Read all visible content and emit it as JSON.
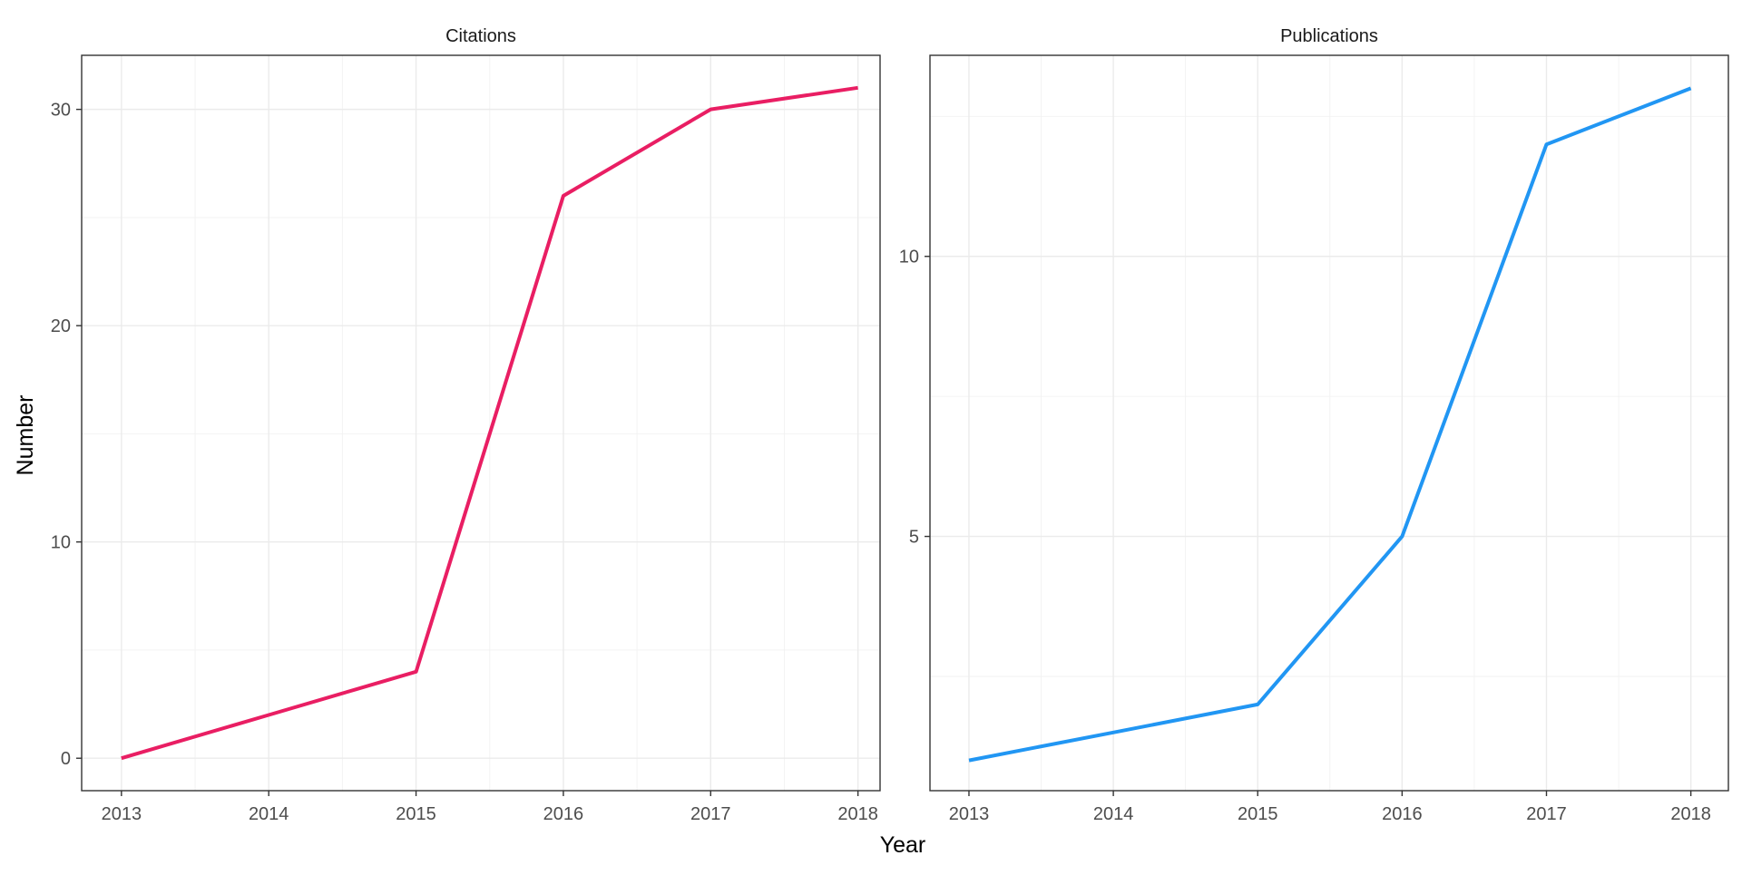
{
  "chart_data": [
    {
      "type": "line",
      "title": "Citations",
      "x": [
        2013,
        2014,
        2015,
        2016,
        2017,
        2018
      ],
      "series": [
        {
          "values": [
            0,
            2,
            4,
            26,
            30,
            31
          ],
          "color": "#e91e63"
        }
      ],
      "xlim": [
        2012.73,
        2018.15
      ],
      "ylim": [
        -1.5,
        32.5
      ],
      "x_ticks": [
        2013,
        2014,
        2015,
        2016,
        2017,
        2018
      ],
      "y_ticks": [
        0,
        10,
        20,
        30
      ],
      "grid": true
    },
    {
      "type": "line",
      "title": "Publications",
      "x": [
        2013,
        2014,
        2015,
        2016,
        2017,
        2018
      ],
      "series": [
        {
          "values": [
            1,
            1.5,
            2,
            5,
            12,
            13
          ],
          "color": "#2196f3"
        }
      ],
      "xlim": [
        2012.73,
        2018.26
      ],
      "ylim": [
        0.46,
        13.59
      ],
      "x_ticks": [
        2013,
        2014,
        2015,
        2016,
        2017,
        2018
      ],
      "y_ticks": [
        5,
        10
      ],
      "grid": true
    }
  ],
  "shared_axes": {
    "xlabel": "Year",
    "ylabel": "Number"
  }
}
